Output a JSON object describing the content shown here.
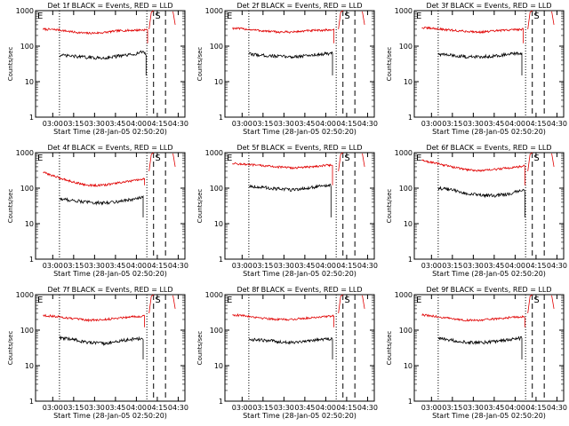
{
  "figure": {
    "colors": {
      "events": "#000000",
      "lld": "#e00000",
      "axis": "#000000"
    }
  },
  "chart_data": [
    {
      "type": "line",
      "title": "Det 1f BLACK = Events, RED = LLD",
      "xlabel": "Start Time (28-Jan-05 02:50:20)",
      "ylabel": "Counts/sec",
      "x_ticks": [
        "03:00",
        "03:15",
        "03:30",
        "03:45",
        "04:00",
        "04:15",
        "04:30"
      ],
      "y_ticks": [
        "1",
        "10",
        "100",
        "1000"
      ],
      "ylim": [
        1,
        1000
      ],
      "yscale": "log",
      "series": [
        {
          "key": "lld",
          "points": [
            [
              0.05,
              300
            ],
            [
              0.15,
              290
            ],
            [
              0.25,
              250
            ],
            [
              0.35,
              230
            ],
            [
              0.45,
              240
            ],
            [
              0.55,
              270
            ],
            [
              0.65,
              280
            ],
            [
              0.75,
              290
            ]
          ]
        },
        {
          "key": "events",
          "points": [
            [
              0.16,
              55
            ],
            [
              0.25,
              52
            ],
            [
              0.35,
              48
            ],
            [
              0.45,
              46
            ],
            [
              0.55,
              52
            ],
            [
              0.65,
              58
            ],
            [
              0.72,
              70
            ],
            [
              0.74,
              60
            ]
          ]
        }
      ],
      "letters": [
        "E",
        "S"
      ]
    },
    {
      "type": "line",
      "title": "Det 2f BLACK = Events, RED = LLD",
      "xlabel": "Start Time (28-Jan-05 02:50:20)",
      "ylabel": "Counts/sec",
      "x_ticks": [
        "03:00",
        "03:15",
        "03:30",
        "03:45",
        "04:00",
        "04:15",
        "04:30"
      ],
      "y_ticks": [
        "1",
        "10",
        "100",
        "1000"
      ],
      "ylim": [
        1,
        1000
      ],
      "yscale": "log",
      "series": [
        {
          "key": "lld",
          "points": [
            [
              0.05,
              320
            ],
            [
              0.15,
              300
            ],
            [
              0.25,
              270
            ],
            [
              0.35,
              250
            ],
            [
              0.45,
              250
            ],
            [
              0.55,
              270
            ],
            [
              0.65,
              280
            ],
            [
              0.73,
              290
            ]
          ]
        },
        {
          "key": "events",
          "points": [
            [
              0.16,
              60
            ],
            [
              0.25,
              55
            ],
            [
              0.35,
              52
            ],
            [
              0.45,
              50
            ],
            [
              0.55,
              54
            ],
            [
              0.65,
              60
            ],
            [
              0.72,
              62
            ]
          ]
        }
      ],
      "letters": [
        "E",
        "S"
      ]
    },
    {
      "type": "line",
      "title": "Det 3f BLACK = Events, RED = LLD",
      "xlabel": "Start Time (28-Jan-05 02:50:20)",
      "ylabel": "Counts/sec",
      "x_ticks": [
        "03:00",
        "03:15",
        "03:30",
        "03:45",
        "04:00",
        "04:15",
        "04:30"
      ],
      "y_ticks": [
        "1",
        "10",
        "100",
        "1000"
      ],
      "ylim": [
        1,
        1000
      ],
      "yscale": "log",
      "series": [
        {
          "key": "lld",
          "points": [
            [
              0.05,
              330
            ],
            [
              0.15,
              310
            ],
            [
              0.25,
              280
            ],
            [
              0.35,
              260
            ],
            [
              0.45,
              250
            ],
            [
              0.55,
              270
            ],
            [
              0.65,
              290
            ],
            [
              0.73,
              300
            ]
          ]
        },
        {
          "key": "events",
          "points": [
            [
              0.16,
              60
            ],
            [
              0.25,
              55
            ],
            [
              0.35,
              50
            ],
            [
              0.45,
              50
            ],
            [
              0.55,
              54
            ],
            [
              0.65,
              60
            ],
            [
              0.72,
              62
            ]
          ]
        }
      ],
      "letters": [
        "E",
        "S"
      ]
    },
    {
      "type": "line",
      "title": "Det 4f BLACK = Events, RED = LLD",
      "xlabel": "Start Time (28-Jan-05 02:50:20)",
      "ylabel": "Counts/sec",
      "x_ticks": [
        "03:00",
        "03:15",
        "03:30",
        "03:45",
        "04:00",
        "04:15",
        "04:30"
      ],
      "y_ticks": [
        "1",
        "10",
        "100",
        "1000"
      ],
      "ylim": [
        1,
        1000
      ],
      "yscale": "log",
      "series": [
        {
          "key": "lld",
          "points": [
            [
              0.05,
              280
            ],
            [
              0.15,
              200
            ],
            [
              0.25,
              150
            ],
            [
              0.35,
              120
            ],
            [
              0.45,
              120
            ],
            [
              0.55,
              140
            ],
            [
              0.65,
              160
            ],
            [
              0.73,
              180
            ]
          ]
        },
        {
          "key": "events",
          "points": [
            [
              0.16,
              50
            ],
            [
              0.25,
              45
            ],
            [
              0.35,
              40
            ],
            [
              0.45,
              38
            ],
            [
              0.55,
              42
            ],
            [
              0.65,
              48
            ],
            [
              0.72,
              55
            ]
          ]
        }
      ],
      "letters": [
        "E",
        "S"
      ]
    },
    {
      "type": "line",
      "title": "Det 5f BLACK = Events, RED = LLD",
      "xlabel": "Start Time (28-Jan-05 02:50:20)",
      "ylabel": "Counts/sec",
      "x_ticks": [
        "03:00",
        "03:15",
        "03:30",
        "03:45",
        "04:00",
        "04:15",
        "04:30"
      ],
      "y_ticks": [
        "1",
        "10",
        "100",
        "1000"
      ],
      "ylim": [
        1,
        1000
      ],
      "yscale": "log",
      "series": [
        {
          "key": "lld",
          "points": [
            [
              0.05,
              500
            ],
            [
              0.15,
              460
            ],
            [
              0.25,
              430
            ],
            [
              0.35,
              400
            ],
            [
              0.45,
              370
            ],
            [
              0.55,
              390
            ],
            [
              0.65,
              430
            ],
            [
              0.72,
              450
            ]
          ]
        },
        {
          "key": "events",
          "points": [
            [
              0.16,
              115
            ],
            [
              0.25,
              105
            ],
            [
              0.35,
              95
            ],
            [
              0.45,
              90
            ],
            [
              0.55,
              100
            ],
            [
              0.65,
              115
            ],
            [
              0.71,
              118
            ]
          ]
        }
      ],
      "letters": [
        "E",
        "S"
      ]
    },
    {
      "type": "line",
      "title": "Det 6f BLACK = Events, RED = LLD",
      "xlabel": "Start Time (28-Jan-05 02:50:20)",
      "ylabel": "Counts/sec",
      "x_ticks": [
        "03:00",
        "03:15",
        "03:30",
        "03:45",
        "04:00",
        "04:15",
        "04:30"
      ],
      "y_ticks": [
        "1",
        "10",
        "100",
        "1000"
      ],
      "ylim": [
        1,
        1000
      ],
      "yscale": "log",
      "series": [
        {
          "key": "lld",
          "points": [
            [
              0.05,
              600
            ],
            [
              0.15,
              500
            ],
            [
              0.25,
              400
            ],
            [
              0.35,
              330
            ],
            [
              0.45,
              310
            ],
            [
              0.55,
              340
            ],
            [
              0.65,
              380
            ],
            [
              0.74,
              420
            ]
          ]
        },
        {
          "key": "events",
          "points": [
            [
              0.16,
              100
            ],
            [
              0.25,
              90
            ],
            [
              0.35,
              70
            ],
            [
              0.45,
              62
            ],
            [
              0.55,
              62
            ],
            [
              0.65,
              70
            ],
            [
              0.72,
              90
            ],
            [
              0.74,
              80
            ]
          ]
        }
      ],
      "letters": [
        "E",
        "S"
      ]
    },
    {
      "type": "line",
      "title": "Det 7f BLACK = Events, RED = LLD",
      "xlabel": "Start Time (28-Jan-05 02:50:20)",
      "ylabel": "Counts/sec",
      "x_ticks": [
        "03:00",
        "03:15",
        "03:30",
        "03:45",
        "04:00",
        "04:15",
        "04:30"
      ],
      "y_ticks": [
        "1",
        "10",
        "100",
        "1000"
      ],
      "ylim": [
        1,
        1000
      ],
      "yscale": "log",
      "series": [
        {
          "key": "lld",
          "points": [
            [
              0.05,
              260
            ],
            [
              0.15,
              240
            ],
            [
              0.25,
              210
            ],
            [
              0.35,
              190
            ],
            [
              0.45,
              195
            ],
            [
              0.55,
              220
            ],
            [
              0.65,
              240
            ],
            [
              0.73,
              250
            ]
          ]
        },
        {
          "key": "events",
          "points": [
            [
              0.16,
              60
            ],
            [
              0.25,
              55
            ],
            [
              0.35,
              45
            ],
            [
              0.45,
              42
            ],
            [
              0.55,
              48
            ],
            [
              0.65,
              56
            ],
            [
              0.72,
              58
            ]
          ]
        }
      ],
      "letters": [
        "E",
        "S"
      ]
    },
    {
      "type": "line",
      "title": "Det 8f BLACK = Events, RED = LLD",
      "xlabel": "Start Time (28-Jan-05 02:50:20)",
      "ylabel": "Counts/sec",
      "x_ticks": [
        "03:00",
        "03:15",
        "03:30",
        "03:45",
        "04:00",
        "04:15",
        "04:30"
      ],
      "y_ticks": [
        "1",
        "10",
        "100",
        "1000"
      ],
      "ylim": [
        1,
        1000
      ],
      "yscale": "log",
      "series": [
        {
          "key": "lld",
          "points": [
            [
              0.05,
              270
            ],
            [
              0.15,
              250
            ],
            [
              0.25,
              220
            ],
            [
              0.35,
              200
            ],
            [
              0.45,
              200
            ],
            [
              0.55,
              220
            ],
            [
              0.65,
              240
            ],
            [
              0.73,
              250
            ]
          ]
        },
        {
          "key": "events",
          "points": [
            [
              0.16,
              55
            ],
            [
              0.25,
              52
            ],
            [
              0.35,
              48
            ],
            [
              0.45,
              45
            ],
            [
              0.55,
              50
            ],
            [
              0.65,
              55
            ],
            [
              0.72,
              58
            ]
          ]
        }
      ],
      "letters": [
        "E",
        "S"
      ]
    },
    {
      "type": "line",
      "title": "Det 9f BLACK = Events, RED = LLD",
      "xlabel": "Start Time (28-Jan-05 02:50:20)",
      "ylabel": "Counts/sec",
      "x_ticks": [
        "03:00",
        "03:15",
        "03:30",
        "03:45",
        "04:00",
        "04:15",
        "04:30"
      ],
      "y_ticks": [
        "1",
        "10",
        "100",
        "1000"
      ],
      "ylim": [
        1,
        1000
      ],
      "yscale": "log",
      "series": [
        {
          "key": "lld",
          "points": [
            [
              0.05,
              270
            ],
            [
              0.15,
              240
            ],
            [
              0.25,
              210
            ],
            [
              0.35,
              190
            ],
            [
              0.45,
              190
            ],
            [
              0.55,
              210
            ],
            [
              0.65,
              230
            ],
            [
              0.74,
              240
            ]
          ]
        },
        {
          "key": "events",
          "points": [
            [
              0.16,
              58
            ],
            [
              0.25,
              52
            ],
            [
              0.35,
              46
            ],
            [
              0.45,
              44
            ],
            [
              0.55,
              48
            ],
            [
              0.65,
              55
            ],
            [
              0.72,
              60
            ]
          ]
        }
      ],
      "letters": [
        "E",
        "S"
      ]
    }
  ]
}
